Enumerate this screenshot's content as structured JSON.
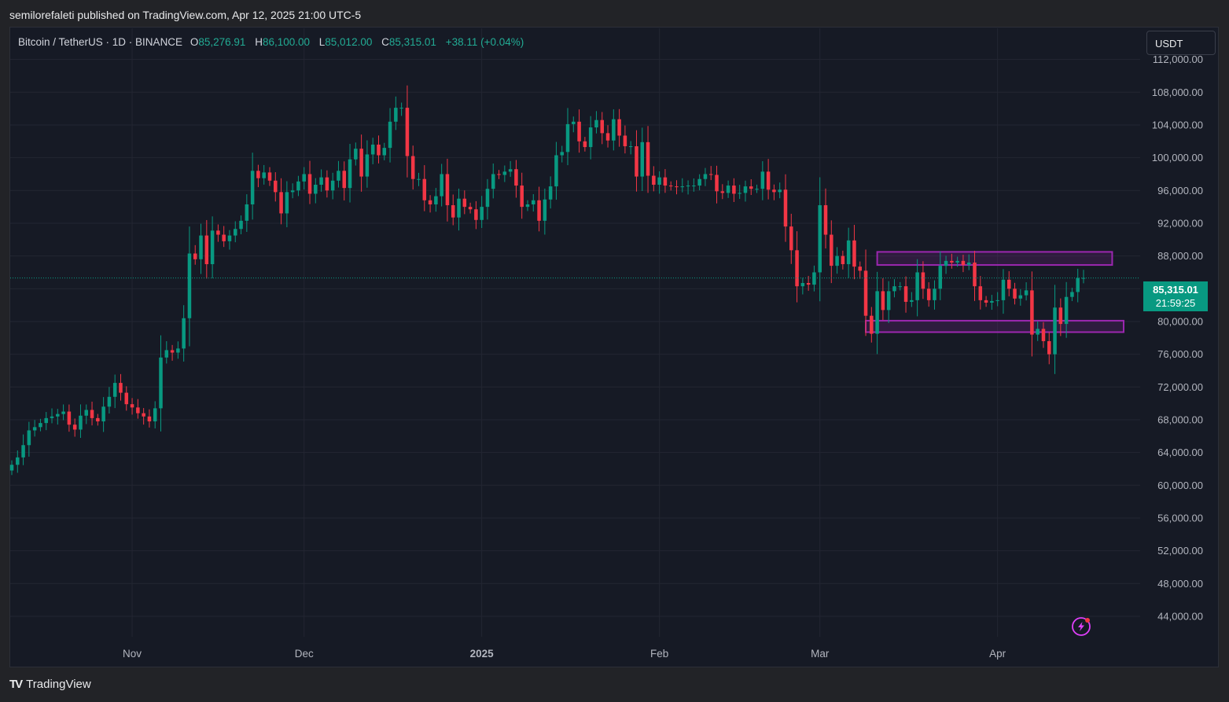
{
  "header": {
    "published": "semilorefaleti published on TradingView.com, Apr 12, 2025 21:00 UTC-5"
  },
  "legend": {
    "symbol": "Bitcoin / TetherUS · 1D · BINANCE",
    "open_label": "O",
    "open": "85,276.91",
    "high_label": "H",
    "high": "86,100.00",
    "low_label": "L",
    "low": "85,012.00",
    "close_label": "C",
    "close": "85,315.01",
    "change": "+38.11 (+0.04%)"
  },
  "currency_button": "USDT",
  "price_tag": {
    "price": "85,315.01",
    "countdown": "21:59:25"
  },
  "footer": {
    "brand": "TradingView",
    "logo": "TV"
  },
  "colors": {
    "up": "#089981",
    "down": "#f23645",
    "box": "#9c27b0",
    "bg": "#161a25",
    "grid": "#232632"
  },
  "chart_data": {
    "type": "candlestick",
    "y_ticks": [
      "112,000.00",
      "108,000.00",
      "104,000.00",
      "100,000.00",
      "96,000.00",
      "92,000.00",
      "88,000.00",
      "84,000.00",
      "80,000.00",
      "76,000.00",
      "72,000.00",
      "68,000.00",
      "64,000.00",
      "60,000.00",
      "56,000.00",
      "52,000.00",
      "48,000.00",
      "44,000.00"
    ],
    "ylim": [
      41500,
      113500
    ],
    "x_ticks": [
      {
        "label": "Nov",
        "date": "2024-11-01",
        "bold": false
      },
      {
        "label": "Dec",
        "date": "2024-12-01",
        "bold": false
      },
      {
        "label": "2025",
        "date": "2025-01-01",
        "bold": true
      },
      {
        "label": "Feb",
        "date": "2025-02-01",
        "bold": false
      },
      {
        "label": "Mar",
        "date": "2025-03-01",
        "bold": false
      },
      {
        "label": "Apr",
        "date": "2025-04-01",
        "bold": false
      }
    ],
    "x_range": [
      "2024-10-11",
      "2025-04-27"
    ],
    "first_date": "2024-10-11",
    "closes": [
      62500,
      63400,
      64900,
      66700,
      67100,
      67600,
      68200,
      68400,
      68700,
      69000,
      67400,
      66800,
      68500,
      69200,
      68200,
      67800,
      69600,
      70800,
      72500,
      71300,
      69900,
      69500,
      68800,
      68400,
      67800,
      69400,
      75600,
      76500,
      76200,
      76700,
      80400,
      88300,
      87600,
      90500,
      87000,
      91100,
      90600,
      89800,
      90500,
      91300,
      92300,
      94300,
      98400,
      97500,
      98200,
      97200,
      95800,
      93200,
      95800,
      96000,
      97100,
      98000,
      95600,
      96700,
      97600,
      96000,
      97200,
      98400,
      96300,
      99800,
      101100,
      97700,
      100400,
      101600,
      100300,
      101200,
      104400,
      106100,
      106100,
      100200,
      97400,
      97400,
      94800,
      94300,
      95300,
      98000,
      94200,
      92700,
      95000,
      94000,
      93700,
      92400,
      94000,
      96200,
      98000,
      97900,
      98300,
      98600,
      96600,
      94000,
      94300,
      94800,
      92300,
      94900,
      96500,
      100300,
      100700,
      104100,
      104400,
      102000,
      101300,
      103700,
      104600,
      103000,
      102100,
      104700,
      102700,
      101400,
      101400,
      97700,
      101900,
      97800,
      96700,
      97600,
      96600,
      96500,
      96400,
      96500,
      96600,
      96600,
      97400,
      98000,
      97900,
      95900,
      95700,
      96600,
      95600,
      95700,
      96500,
      96200,
      96200,
      98300,
      96100,
      95800,
      96100,
      91600,
      88700,
      84300,
      84700,
      84500,
      86000,
      94200,
      90600,
      86800,
      88000,
      87000,
      89900,
      86700,
      86200,
      80700,
      78500,
      83700,
      81400,
      83700,
      84300,
      84300,
      82400,
      82600,
      86000,
      84000,
      82600,
      84000,
      86800,
      87400,
      87200,
      87400,
      86900,
      87200,
      84300,
      82600,
      82300,
      82500,
      82600,
      85100,
      84000,
      82800,
      83200,
      83800,
      78400,
      79100,
      77600,
      76000,
      81700,
      79700,
      83000,
      83600,
      85300,
      85315
    ]
  }
}
